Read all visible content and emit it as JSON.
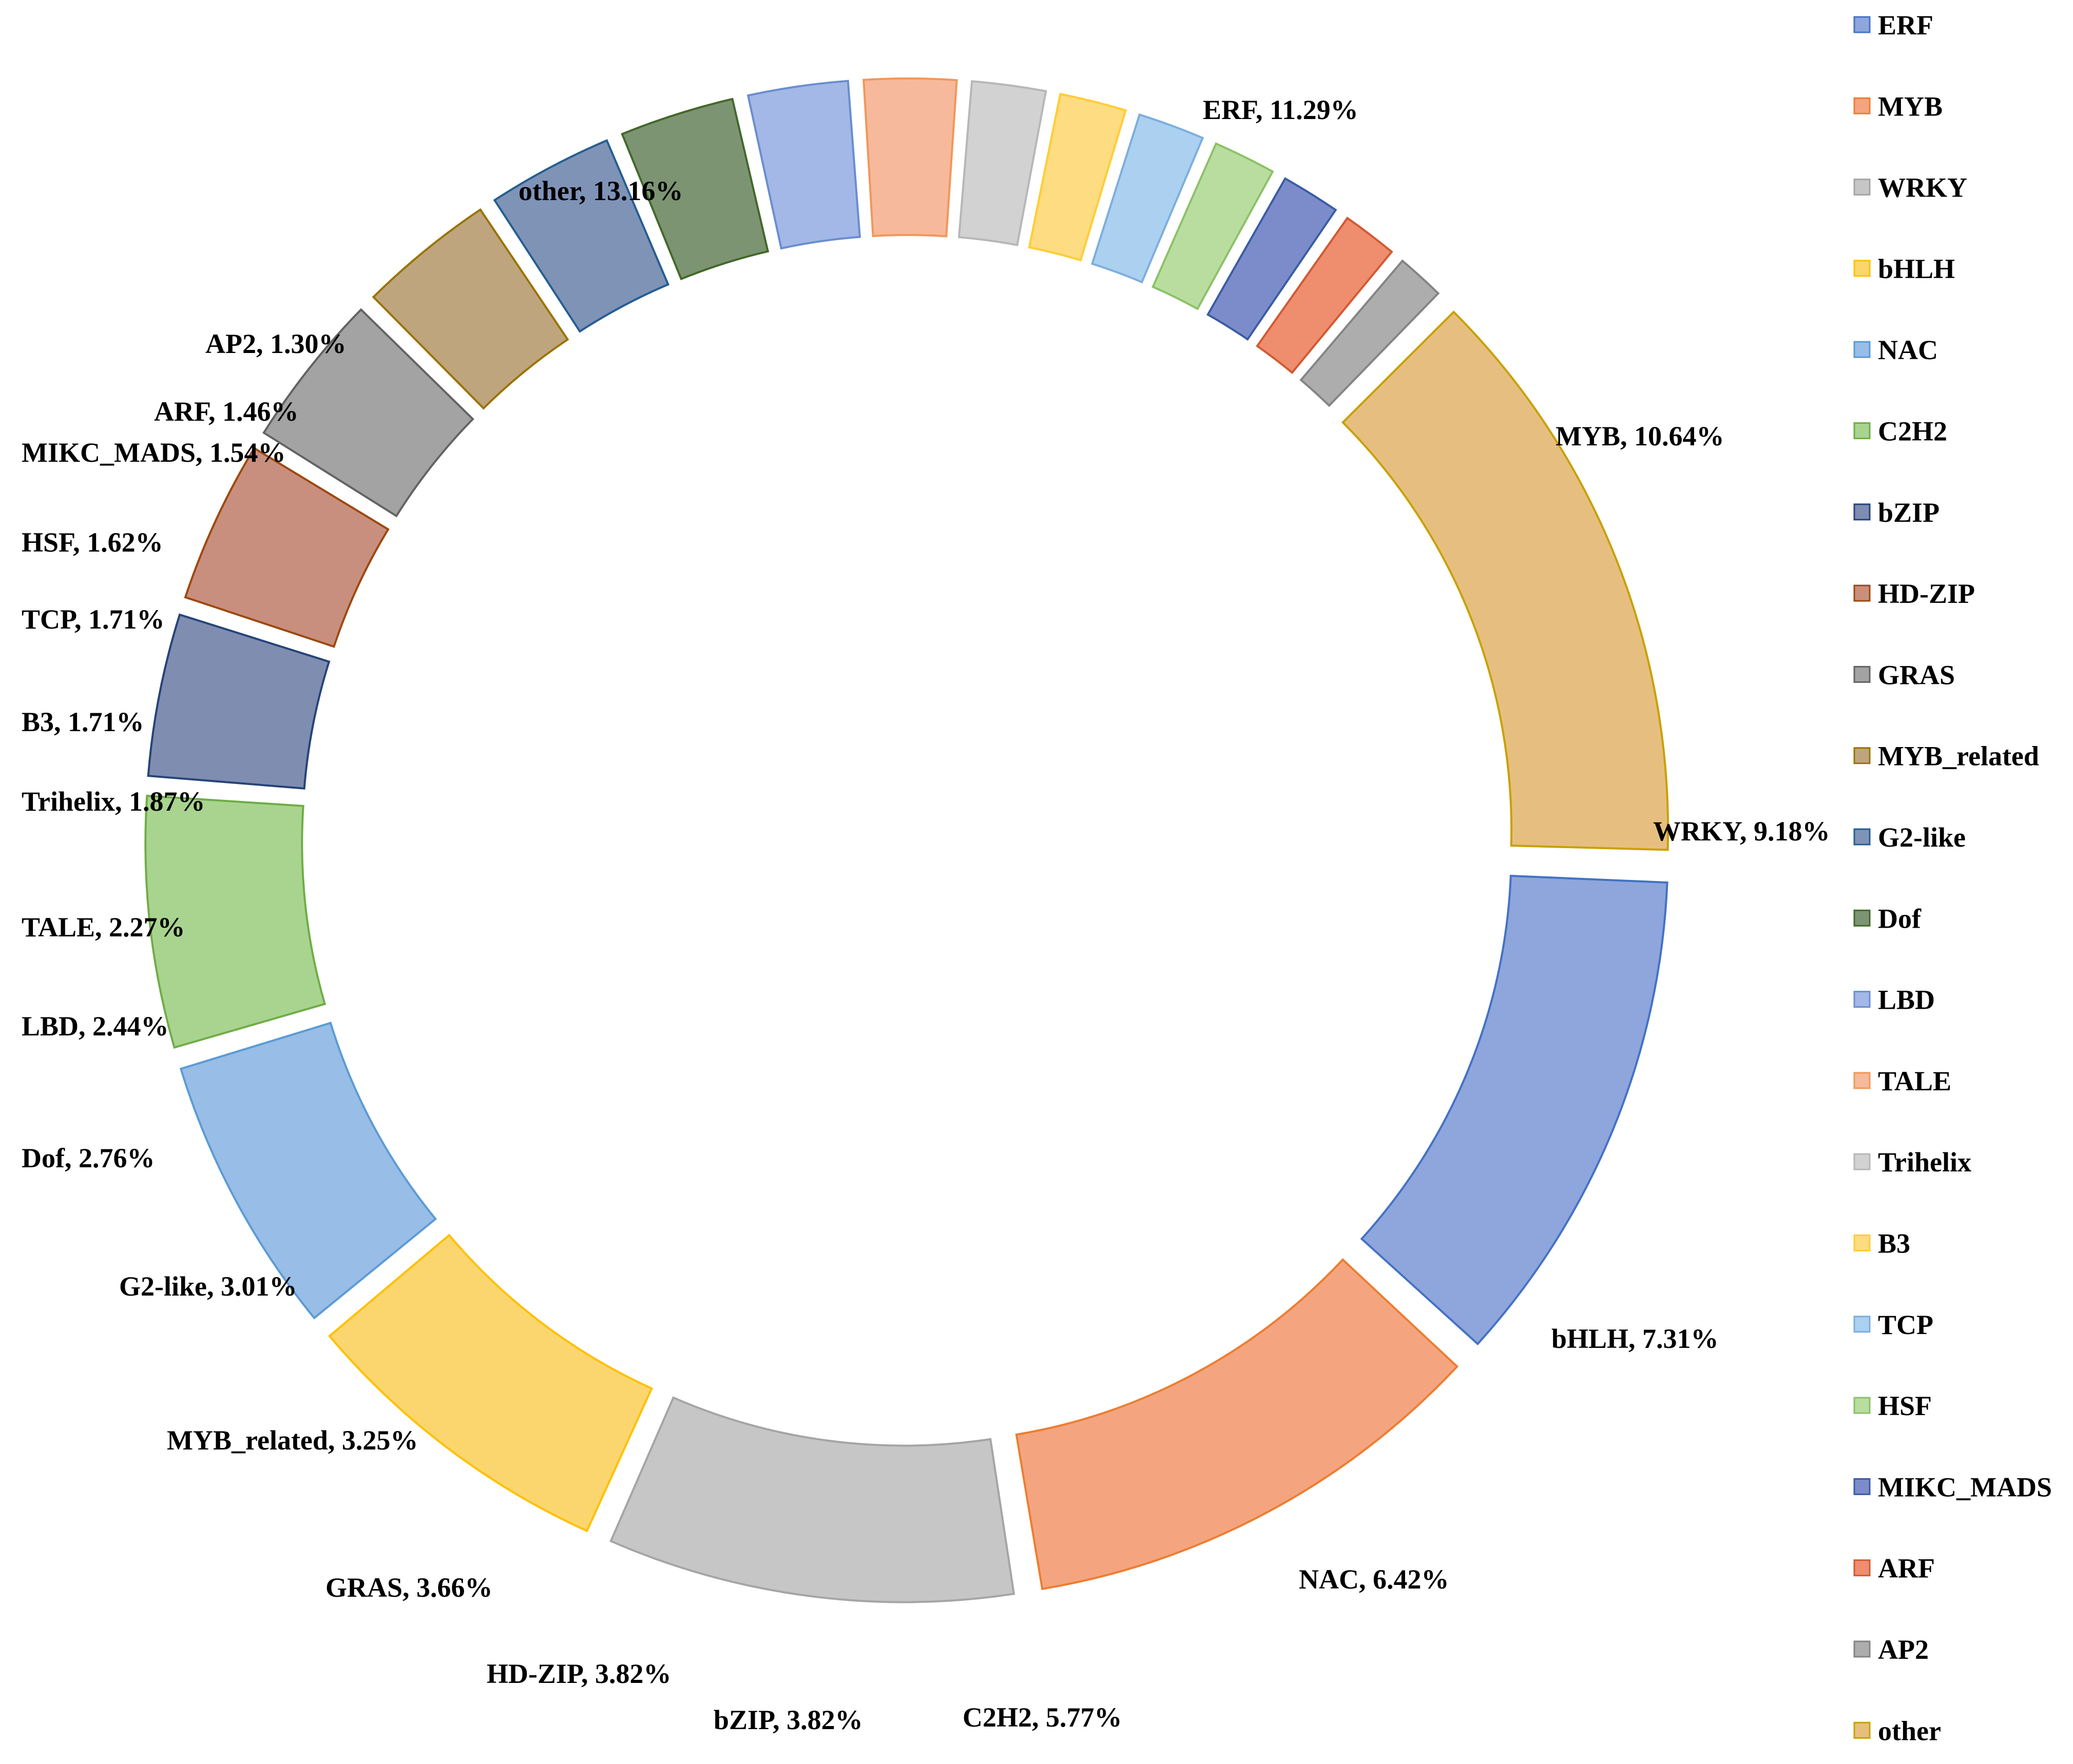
{
  "chart_data": {
    "type": "pie",
    "variant": "exploded-donut",
    "title": "",
    "legend_position": "right",
    "categories": [
      "ERF",
      "MYB",
      "WRKY",
      "bHLH",
      "NAC",
      "C2H2",
      "bZIP",
      "HD-ZIP",
      "GRAS",
      "MYB_related",
      "G2-like",
      "Dof",
      "LBD",
      "TALE",
      "Trihelix",
      "B3",
      "TCP",
      "HSF",
      "MIKC_MADS",
      "ARF",
      "AP2",
      "other"
    ],
    "values": [
      11.29,
      10.64,
      9.18,
      7.31,
      6.42,
      5.77,
      3.82,
      3.82,
      3.66,
      3.25,
      3.01,
      2.76,
      2.44,
      2.27,
      1.87,
      1.71,
      1.71,
      1.62,
      1.54,
      1.46,
      1.3,
      13.16
    ],
    "data_labels": [
      "ERF, 11.29%",
      "MYB, 10.64%",
      "WRKY, 9.18%",
      "bHLH, 7.31%",
      "NAC, 6.42%",
      "C2H2, 5.77%",
      "bZIP, 3.82%",
      "HD-ZIP, 3.82%",
      "GRAS, 3.66%",
      "MYB_related, 3.25%",
      "G2-like, 3.01%",
      "Dof, 2.76%",
      "LBD, 2.44%",
      "TALE, 2.27%",
      "Trihelix, 1.87%",
      "B3, 1.71%",
      "TCP, 1.71%",
      "HSF, 1.62%",
      "MIKC_MADS, 1.54%",
      "ARF, 1.46%",
      "AP2, 1.30%",
      "other, 13.16%"
    ],
    "colors": [
      "#8ea6dc",
      "#f4a57f",
      "#c6c6c6",
      "#fbd66e",
      "#98bde6",
      "#a9d490",
      "#7f8db1",
      "#c98f7e",
      "#a3a3a3",
      "#bfa57d",
      "#7f93b7",
      "#7d9473",
      "#a3b8e6",
      "#f7b99b",
      "#d2d2d2",
      "#fddc82",
      "#acd0ef",
      "#b9dd9f",
      "#7c8ccb",
      "#ef8d6f",
      "#adadad",
      "#e6bf80"
    ],
    "strokes": [
      "#4472c4",
      "#ed7d31",
      "#a5a5a5",
      "#ffc000",
      "#5b9bd5",
      "#70ad47",
      "#264478",
      "#9e480e",
      "#636363",
      "#997300",
      "#255e91",
      "#43682b",
      "#698ed0",
      "#f1975a",
      "#b7b7b7",
      "#ffcd33",
      "#7cafdd",
      "#8cc168",
      "#3a5ca4",
      "#d05a31",
      "#848484",
      "#c9a000"
    ]
  }
}
